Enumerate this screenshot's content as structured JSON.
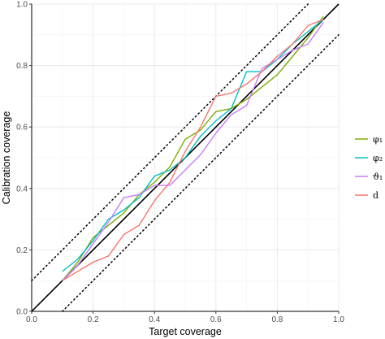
{
  "chart_data": {
    "type": "line",
    "xlabel": "Target coverage",
    "ylabel": "Calibration coverage",
    "xlim": [
      0.0,
      1.0
    ],
    "ylim": [
      0.0,
      1.0
    ],
    "x_ticks": [
      "0.0",
      "0.2",
      "0.4",
      "0.6",
      "0.8",
      "1.0"
    ],
    "y_ticks": [
      "0.0",
      "0.2",
      "0.4",
      "0.6",
      "0.8",
      "1.0"
    ],
    "grid": true,
    "legend_position": "right",
    "reference_lines": [
      {
        "style": "solid",
        "color": "#000000",
        "x": [
          0.0,
          1.0
        ],
        "y": [
          0.0,
          1.0
        ]
      },
      {
        "style": "dotted",
        "color": "#000000",
        "x": [
          0.0,
          0.9
        ],
        "y": [
          0.1,
          1.0
        ]
      },
      {
        "style": "dotted",
        "color": "#000000",
        "x": [
          0.1,
          1.0
        ],
        "y": [
          0.0,
          0.9
        ]
      }
    ],
    "x": [
      0.1,
      0.15,
      0.2,
      0.25,
      0.3,
      0.35,
      0.4,
      0.45,
      0.5,
      0.55,
      0.6,
      0.65,
      0.7,
      0.75,
      0.8,
      0.85,
      0.9,
      0.95
    ],
    "series": [
      {
        "name": "φ₁",
        "color": "#7cae00",
        "values": [
          0.1,
          0.16,
          0.24,
          0.28,
          0.32,
          0.38,
          0.42,
          0.47,
          0.56,
          0.59,
          0.65,
          0.66,
          0.69,
          0.73,
          0.77,
          0.83,
          0.89,
          0.96
        ]
      },
      {
        "name": "φ₂",
        "color": "#00bfc4",
        "values": [
          0.13,
          0.17,
          0.23,
          0.3,
          0.33,
          0.37,
          0.44,
          0.46,
          0.5,
          0.57,
          0.62,
          0.66,
          0.78,
          0.78,
          0.82,
          0.87,
          0.91,
          0.95
        ]
      },
      {
        "name": "ϑ₁",
        "color": "#c77cff",
        "values": [
          0.1,
          0.15,
          0.22,
          0.29,
          0.37,
          0.38,
          0.41,
          0.41,
          0.46,
          0.51,
          0.58,
          0.64,
          0.67,
          0.79,
          0.82,
          0.85,
          0.87,
          0.94
        ]
      },
      {
        "name": "d",
        "color": "#f8766d",
        "values": [
          0.1,
          0.13,
          0.16,
          0.18,
          0.25,
          0.28,
          0.36,
          0.42,
          0.52,
          0.6,
          0.7,
          0.71,
          0.74,
          0.78,
          0.83,
          0.87,
          0.93,
          0.95
        ]
      }
    ]
  }
}
